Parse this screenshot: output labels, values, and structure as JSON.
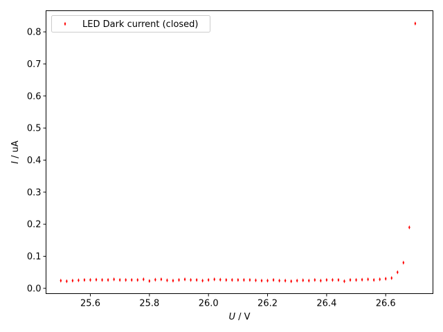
{
  "chart_data": {
    "type": "scatter",
    "xlabel_var": "U",
    "xlabel_unit": " / V",
    "ylabel_var": "I",
    "ylabel_unit": " / uA",
    "xlim": [
      25.45,
      26.76
    ],
    "ylim": [
      -0.0165,
      0.866
    ],
    "x_ticks": [
      25.6,
      25.8,
      26.0,
      26.2,
      26.4,
      26.6
    ],
    "x_tick_labels": [
      "25.6",
      "25.8",
      "26.0",
      "26.2",
      "26.4",
      "26.6"
    ],
    "y_ticks": [
      0.0,
      0.1,
      0.2,
      0.3,
      0.4,
      0.5,
      0.6,
      0.7,
      0.8
    ],
    "y_tick_labels": [
      "0.0",
      "0.1",
      "0.2",
      "0.3",
      "0.4",
      "0.5",
      "0.6",
      "0.7",
      "0.8"
    ],
    "grid": false,
    "legend_placement": "upper-left",
    "marker_color": "#ff0000",
    "series": [
      {
        "name": "LED Dark current (closed)",
        "x": [
          25.5,
          25.52,
          25.54,
          25.56,
          25.58,
          25.6,
          25.62,
          25.64,
          25.66,
          25.68,
          25.7,
          25.72,
          25.74,
          25.76,
          25.78,
          25.8,
          25.82,
          25.84,
          25.86,
          25.88,
          25.9,
          25.92,
          25.94,
          25.96,
          25.98,
          26.0,
          26.02,
          26.04,
          26.06,
          26.08,
          26.1,
          26.12,
          26.14,
          26.16,
          26.18,
          26.2,
          26.22,
          26.24,
          26.26,
          26.28,
          26.3,
          26.32,
          26.34,
          26.36,
          26.38,
          26.4,
          26.42,
          26.44,
          26.46,
          26.48,
          26.5,
          26.52,
          26.54,
          26.56,
          26.58,
          26.6,
          26.62,
          26.64,
          26.66,
          26.68,
          26.7
        ],
        "y": [
          0.024,
          0.022,
          0.024,
          0.025,
          0.026,
          0.026,
          0.027,
          0.026,
          0.026,
          0.028,
          0.026,
          0.026,
          0.026,
          0.026,
          0.028,
          0.023,
          0.027,
          0.028,
          0.025,
          0.024,
          0.026,
          0.028,
          0.026,
          0.026,
          0.024,
          0.026,
          0.028,
          0.027,
          0.026,
          0.026,
          0.026,
          0.026,
          0.026,
          0.025,
          0.024,
          0.024,
          0.026,
          0.024,
          0.024,
          0.022,
          0.024,
          0.025,
          0.024,
          0.026,
          0.024,
          0.026,
          0.026,
          0.026,
          0.022,
          0.026,
          0.026,
          0.027,
          0.028,
          0.026,
          0.028,
          0.03,
          0.032,
          0.05,
          0.08,
          0.19,
          0.826
        ]
      }
    ]
  }
}
